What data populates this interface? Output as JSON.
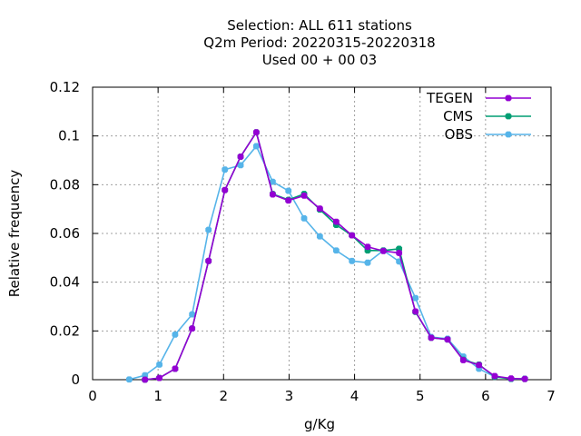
{
  "chart_data": {
    "type": "line",
    "title_lines": [
      "Selection: ALL    611 stations",
      "Q2m  Period: 20220315-20220318",
      "Used  00 + 00 03"
    ],
    "xlabel": "g/Kg",
    "ylabel": "Relative frequency",
    "xlim": [
      0,
      7
    ],
    "ylim": [
      0,
      0.12
    ],
    "xticks": [
      0,
      1,
      2,
      3,
      4,
      5,
      6,
      7
    ],
    "yticks": [
      0,
      0.02,
      0.04,
      0.06,
      0.08,
      0.1,
      0.12
    ],
    "xtick_labels": [
      "0",
      "1",
      "2",
      "3",
      "4",
      "5",
      "6",
      "7"
    ],
    "ytick_labels": [
      "0",
      "0.02",
      "0.04",
      "0.06",
      "0.08",
      "0.1",
      "0.12"
    ],
    "grid": true,
    "legend_position": "top-right",
    "series": [
      {
        "name": "TEGEN",
        "color": "#9400d3",
        "x": [
          0.8,
          1.02,
          1.26,
          1.52,
          1.77,
          2.02,
          2.26,
          2.5,
          2.75,
          2.99,
          3.23,
          3.47,
          3.72,
          3.96,
          4.2,
          4.44,
          4.68,
          4.93,
          5.17,
          5.42,
          5.66,
          5.9,
          6.14,
          6.39,
          6.6
        ],
        "y": [
          0.0,
          0.0007,
          0.0045,
          0.021,
          0.0487,
          0.0778,
          0.0915,
          0.1015,
          0.076,
          0.0735,
          0.0755,
          0.0702,
          0.0648,
          0.0592,
          0.0545,
          0.0528,
          0.052,
          0.028,
          0.0172,
          0.0165,
          0.008,
          0.006,
          0.0015,
          0.0005,
          0.0003
        ]
      },
      {
        "name": "CMS",
        "color": "#009e73",
        "x": [
          0.8,
          1.02,
          1.26,
          1.52,
          1.77,
          2.02,
          2.26,
          2.5,
          2.75,
          2.99,
          3.23,
          3.47,
          3.72,
          3.96,
          4.2,
          4.44,
          4.68,
          4.93,
          5.17,
          5.42,
          5.66,
          5.9,
          6.14,
          6.39,
          6.6
        ],
        "y": [
          0.0,
          0.0007,
          0.0045,
          0.021,
          0.0487,
          0.0778,
          0.0915,
          0.1015,
          0.0762,
          0.0738,
          0.0762,
          0.0698,
          0.0635,
          0.0592,
          0.053,
          0.053,
          0.0537,
          0.0278,
          0.0172,
          0.0165,
          0.0082,
          0.0062,
          0.0012,
          0.0004,
          0.0003
        ]
      },
      {
        "name": "OBS",
        "color": "#56b4e9",
        "x": [
          0.56,
          0.8,
          1.02,
          1.26,
          1.52,
          1.77,
          2.02,
          2.26,
          2.5,
          2.75,
          2.99,
          3.23,
          3.47,
          3.72,
          3.96,
          4.2,
          4.44,
          4.68,
          4.93,
          5.17,
          5.42,
          5.66,
          5.9,
          6.14,
          6.39,
          6.6
        ],
        "y": [
          0.0001,
          0.0018,
          0.0062,
          0.0185,
          0.0268,
          0.0615,
          0.0862,
          0.088,
          0.0958,
          0.0812,
          0.0775,
          0.0662,
          0.0588,
          0.053,
          0.0487,
          0.048,
          0.053,
          0.0485,
          0.0335,
          0.0175,
          0.0168,
          0.0095,
          0.0045,
          0.0012,
          0.0003,
          0.0004
        ]
      }
    ]
  }
}
